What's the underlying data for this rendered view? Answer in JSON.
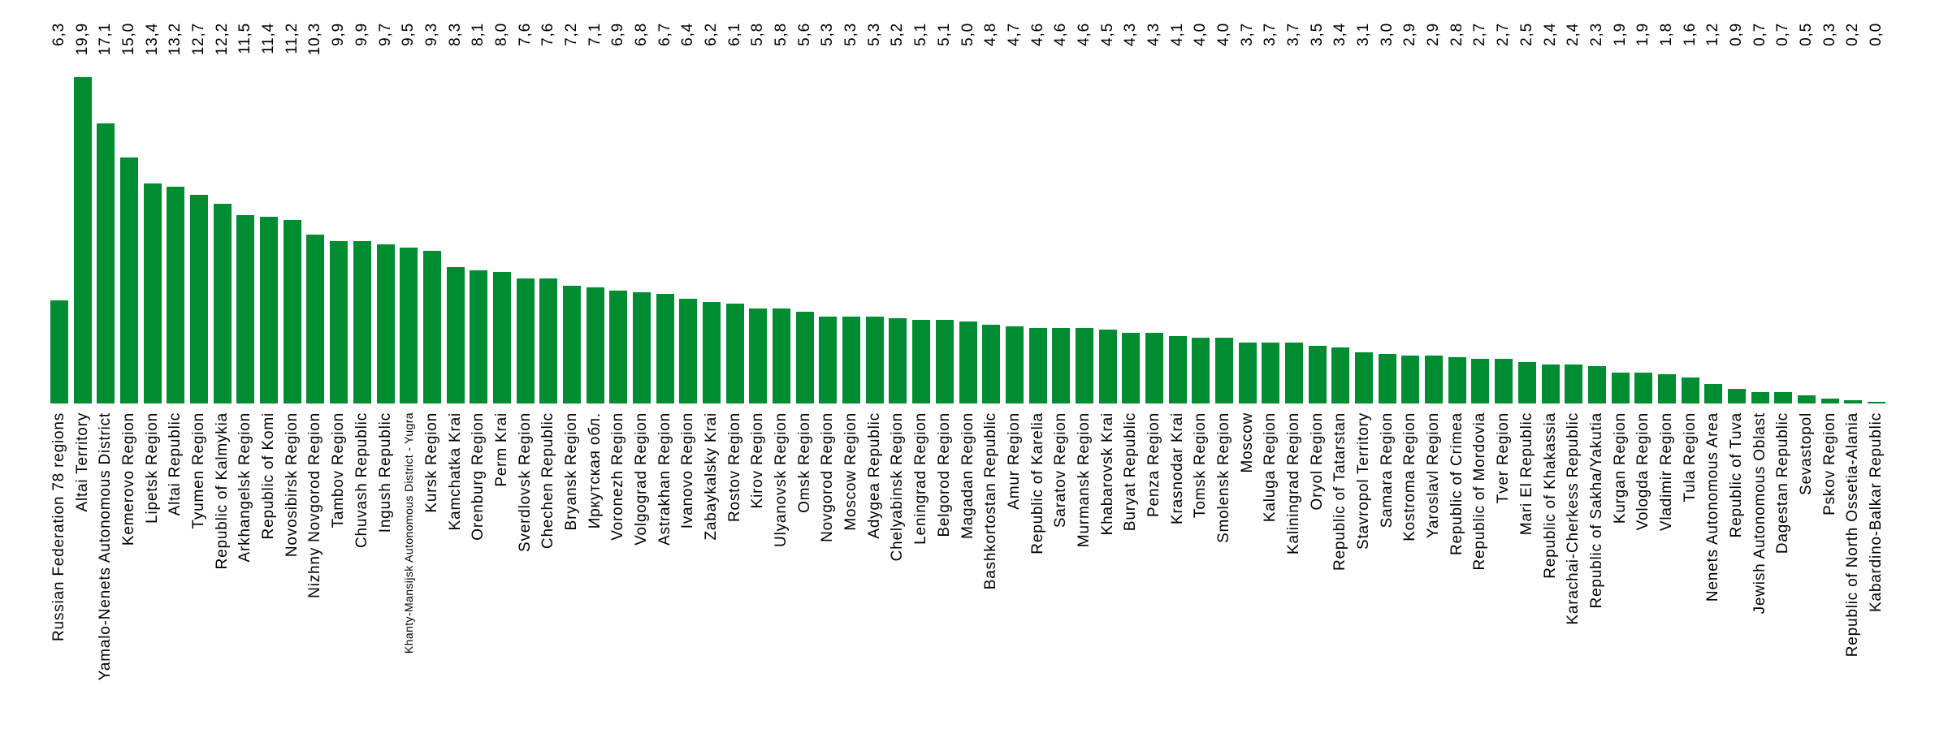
{
  "colors": {
    "bar": "#008C30",
    "text": "#000000",
    "background": "#FFFFFF"
  },
  "chart_data": {
    "type": "bar",
    "title": "",
    "xlabel": "",
    "ylabel": "",
    "ylim": [
      0,
      19.9
    ],
    "grid": false,
    "legend": false,
    "axes_visible": false,
    "bar_color": "#008C30",
    "value_label_position": "top-row-rotated-90",
    "category_label_rotation": 90,
    "decimal_separator": ",",
    "categories": [
      "Russian Federation 78 regions",
      "Altai Territory",
      "Yamalo-Nenets Autonomous District",
      "Kemerovo Region",
      "Lipetsk Region",
      "Altai Republic",
      "Tyumen Region",
      "Republic of Kalmykia",
      "Arkhangelsk Region",
      "Republic of Komi",
      "Novosibirsk Region",
      "Nizhny Novgorod Region",
      "Tambov Region",
      "Chuvash Republic",
      "Ingush Republic",
      "Khanty-Mansijsk Autonomous District - Yugra",
      "Kursk Region",
      "Kamchatka Krai",
      "Orenburg Region",
      "Perm Krai",
      "Sverdlovsk Region",
      "Chechen Republic",
      "Bryansk Region",
      "Иркутская обл.",
      "Voronezh Region",
      "Volgograd Region",
      "Astrakhan Region",
      "Ivanovo Region",
      "Zabaykalsky Krai",
      "Rostov Region",
      "Kirov Region",
      "Ulyanovsk Region",
      "Omsk Region",
      "Novgorod Region",
      "Moscow Region",
      "Adygea Republic",
      "Chelyabinsk Region",
      "Leningrad Region",
      "Belgorod Region",
      "Magadan Region",
      "Bashkortostan Republic",
      "Amur Region",
      "Republic of Karelia",
      "Saratov Region",
      "Murmansk Region",
      "Khabarovsk Krai",
      "Buryat Republic",
      "Penza Region",
      "Krasnodar Krai",
      "Tomsk Region",
      "Smolensk Region",
      "Moscow",
      "Kaluga Region",
      "Kaliningrad Region",
      "Oryol Region",
      "Republic of Tatarstan",
      "Stavropol Territory",
      "Samara Region",
      "Kostroma Region",
      "Yaroslavl Region",
      "Republic of Crimea",
      "Republic of Mordovia",
      "Tver Region",
      "Mari El Republic",
      "Republic of Khakassia",
      "Karachai-Cherkess Republic",
      "Republic of Sakha/Yakutia",
      "Kurgan Region",
      "Vologda Region",
      "Vladimir Region",
      "Tula Region",
      "Nenets Autonomous Area",
      "Republic of Tuva",
      "Jewish Autonomous Oblast",
      "Dagestan Republic",
      "Sevastopol",
      "Pskov Region",
      "Republic of North Ossetia-Alania",
      "Kabardino-Balkar Republic"
    ],
    "values": [
      6.3,
      19.9,
      17.1,
      15.0,
      13.4,
      13.2,
      12.7,
      12.2,
      11.5,
      11.4,
      11.2,
      10.3,
      9.9,
      9.9,
      9.7,
      9.5,
      9.3,
      8.3,
      8.1,
      8.0,
      7.6,
      7.6,
      7.2,
      7.1,
      6.9,
      6.8,
      6.7,
      6.4,
      6.2,
      6.1,
      5.8,
      5.8,
      5.6,
      5.3,
      5.3,
      5.3,
      5.2,
      5.1,
      5.1,
      5.0,
      4.8,
      4.7,
      4.6,
      4.6,
      4.6,
      4.5,
      4.3,
      4.3,
      4.1,
      4.0,
      4.0,
      3.7,
      3.7,
      3.7,
      3.5,
      3.4,
      3.1,
      3.0,
      2.9,
      2.9,
      2.8,
      2.7,
      2.7,
      2.5,
      2.4,
      2.4,
      2.3,
      1.9,
      1.9,
      1.8,
      1.6,
      1.2,
      0.9,
      0.7,
      0.7,
      0.5,
      0.3,
      0.2,
      0.0
    ],
    "value_labels": [
      "6,3",
      "19,9",
      "17,1",
      "15,0",
      "13,4",
      "13,2",
      "12,7",
      "12,2",
      "11,5",
      "11,4",
      "11,2",
      "10,3",
      "9,9",
      "9,9",
      "9,7",
      "9,5",
      "9,3",
      "8,3",
      "8,1",
      "8,0",
      "7,6",
      "7,6",
      "7,2",
      "7,1",
      "6,9",
      "6,8",
      "6,7",
      "6,4",
      "6,2",
      "6,1",
      "5,8",
      "5,8",
      "5,6",
      "5,3",
      "5,3",
      "5,3",
      "5,2",
      "5,1",
      "5,1",
      "5,0",
      "4,8",
      "4,7",
      "4,6",
      "4,6",
      "4,6",
      "4,5",
      "4,3",
      "4,3",
      "4,1",
      "4,0",
      "4,0",
      "3,7",
      "3,7",
      "3,7",
      "3,5",
      "3,4",
      "3,1",
      "3,0",
      "2,9",
      "2,9",
      "2,8",
      "2,7",
      "2,7",
      "2,5",
      "2,4",
      "2,4",
      "2,3",
      "1,9",
      "1,9",
      "1,8",
      "1,6",
      "1,2",
      "0,9",
      "0,7",
      "0,7",
      "0,5",
      "0,3",
      "0,2",
      "0,0"
    ]
  }
}
